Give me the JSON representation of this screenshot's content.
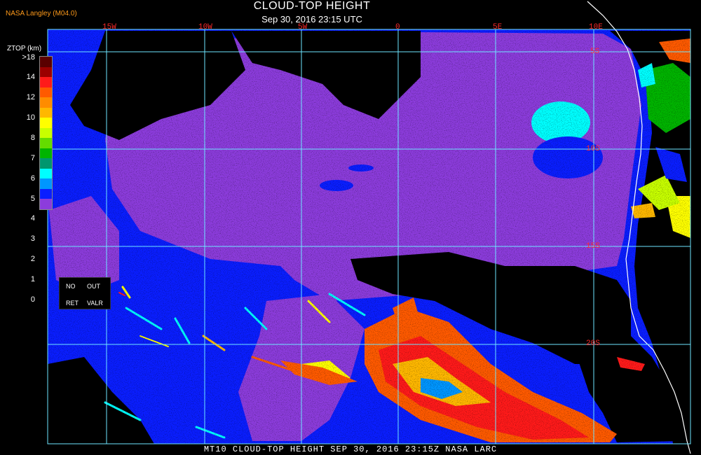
{
  "header": {
    "agency": "NASA Langley (M04.0)",
    "title": "CLOUD-TOP HEIGHT",
    "subtitle": "Sep 30, 2016 23:15 UTC"
  },
  "lon_labels": [
    "15W",
    "10W",
    "5W",
    "0",
    "5E",
    "10E"
  ],
  "lat_labels": [
    "5S",
    "10S",
    "15S",
    "20S"
  ],
  "legend": {
    "title": "ZTOP (km)",
    "ticks": [
      ">18",
      "14",
      "12",
      "10",
      "8",
      "7",
      "6",
      "5",
      "4",
      "3",
      "2",
      "1",
      "0"
    ],
    "colors": [
      "#5a0000",
      "#9c0000",
      "#ff1a1a",
      "#ff5a00",
      "#ff8c00",
      "#ffb800",
      "#ffff00",
      "#c8ff00",
      "#64dc00",
      "#00b400",
      "#00966e",
      "#00ffff",
      "#0096ff",
      "#0a1eff",
      "#8c3cdc"
    ],
    "no_label": "NO",
    "out_label": "OUT",
    "ret_label": "RET",
    "valr_label": "VALR"
  },
  "footer": "MT10  CLOUD-TOP HEIGHT  SEP 30, 2016 23:15Z  NASA LARC",
  "palette": {
    "low_cloud": "#8c3cdc",
    "ocean_clear": "#0a1eff",
    "grid": "#6ee6ff",
    "coast": "#ffffff",
    "label": "#ff2a2a"
  }
}
